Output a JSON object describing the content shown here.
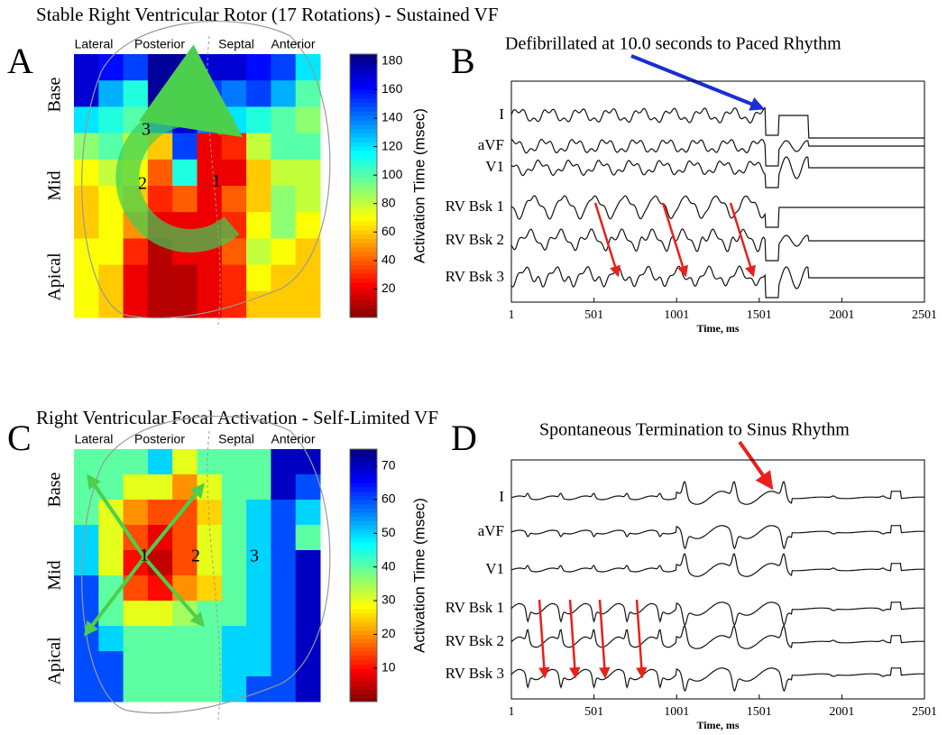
{
  "chart_data": [
    {
      "type": "heatmap",
      "panel": "A",
      "title": "Stable Right Ventricular Rotor (17 Rotations) - Sustained VF",
      "columns": [
        "Lateral",
        "Posterior",
        "Septal",
        "Anterior"
      ],
      "rows": [
        "Base",
        "Mid",
        "Apical"
      ],
      "z": [
        [
          170,
          160,
          150,
          180,
          180,
          170,
          170,
          160,
          150,
          120
        ],
        [
          170,
          130,
          110,
          180,
          170,
          150,
          140,
          150,
          130,
          100
        ],
        [
          120,
          110,
          100,
          140,
          170,
          140,
          120,
          110,
          100,
          90
        ],
        [
          90,
          100,
          80,
          60,
          150,
          20,
          30,
          80,
          100,
          100
        ],
        [
          70,
          80,
          70,
          40,
          110,
          20,
          20,
          60,
          80,
          80
        ],
        [
          60,
          70,
          60,
          30,
          40,
          20,
          40,
          60,
          90,
          80
        ],
        [
          60,
          70,
          50,
          20,
          20,
          20,
          30,
          70,
          90,
          70
        ],
        [
          70,
          70,
          30,
          10,
          20,
          20,
          40,
          80,
          70,
          60
        ],
        [
          70,
          60,
          20,
          10,
          10,
          20,
          30,
          70,
          60,
          60
        ],
        [
          70,
          60,
          20,
          10,
          10,
          20,
          30,
          60,
          60,
          60
        ]
      ],
      "colormap": "jet_reversed",
      "clim": [
        0,
        185
      ],
      "cticks": [
        20,
        40,
        60,
        80,
        100,
        120,
        140,
        160,
        180
      ],
      "colorbar_label": "Activation Time (msec)",
      "annotations": [
        "3",
        "2",
        "1"
      ]
    },
    {
      "type": "trace",
      "panel": "B",
      "annotation": "Defibrillated at 10.0 seconds to Paced Rhythm",
      "channels": [
        "I",
        "aVF",
        "V1",
        "RV Bsk 1",
        "RV Bsk 2",
        "RV Bsk 3"
      ],
      "xlim": [
        1,
        2501
      ],
      "xticks": [
        1,
        501,
        1001,
        1501,
        2001,
        2501
      ],
      "xlabel": "Time, ms"
    },
    {
      "type": "heatmap",
      "panel": "C",
      "title": "Right Ventricular Focal Activation - Self-Limited VF",
      "columns": [
        "Lateral",
        "Posterior",
        "Septal",
        "Anterior"
      ],
      "rows": [
        "Base",
        "Mid",
        "Apical"
      ],
      "z": [
        [
          40,
          40,
          40,
          50,
          30,
          40,
          40,
          40,
          70,
          70
        ],
        [
          40,
          40,
          30,
          30,
          20,
          30,
          40,
          40,
          70,
          60
        ],
        [
          40,
          30,
          20,
          15,
          15,
          25,
          40,
          50,
          60,
          50
        ],
        [
          50,
          30,
          15,
          8,
          15,
          30,
          40,
          50,
          60,
          40
        ],
        [
          50,
          30,
          10,
          5,
          15,
          30,
          40,
          50,
          60,
          70
        ],
        [
          60,
          40,
          15,
          10,
          20,
          25,
          40,
          50,
          60,
          70
        ],
        [
          60,
          40,
          30,
          30,
          35,
          40,
          40,
          50,
          60,
          70
        ],
        [
          60,
          50,
          40,
          40,
          40,
          40,
          50,
          50,
          60,
          70
        ],
        [
          60,
          60,
          40,
          40,
          40,
          40,
          50,
          50,
          60,
          70
        ],
        [
          60,
          60,
          40,
          40,
          40,
          40,
          50,
          60,
          60,
          70
        ]
      ],
      "colormap": "jet_reversed",
      "clim": [
        0,
        75
      ],
      "cticks": [
        10,
        20,
        30,
        40,
        50,
        60,
        70
      ],
      "colorbar_label": "Activation Time (msec)",
      "annotations": [
        "1",
        "2",
        "3"
      ]
    },
    {
      "type": "trace",
      "panel": "D",
      "annotation": "Spontaneous Termination to Sinus Rhythm",
      "channels": [
        "I",
        "aVF",
        "V1",
        "RV Bsk 1",
        "RV Bsk 2",
        "RV Bsk 3"
      ],
      "xlim": [
        1,
        2501
      ],
      "xticks": [
        1,
        501,
        1001,
        1501,
        2001,
        2501
      ],
      "xlabel": "Time, ms"
    }
  ]
}
